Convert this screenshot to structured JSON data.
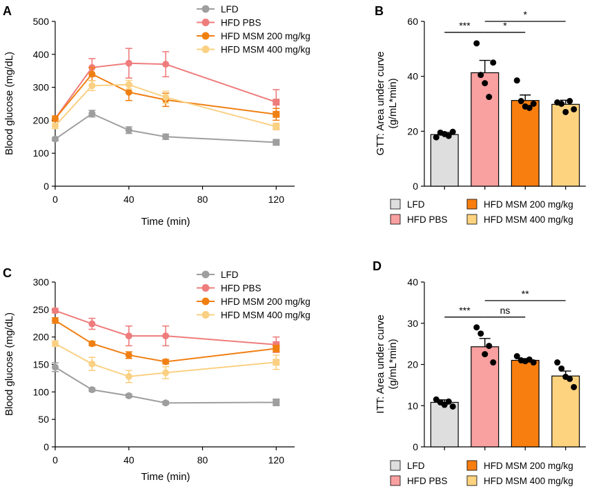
{
  "colors": {
    "LFD": "#9e9e9e",
    "HFD PBS": "#ef7c7c",
    "HFD MSM 200 mg/kg": "#f07f12",
    "HFD MSM 400 mg/kg": "#fad083",
    "LFD_bar": "#dedede",
    "HFD PBS_bar": "#f9a0a0",
    "HFD MSM 200 mg/kg_bar": "#f97e10",
    "HFD MSM 400 mg/kg_bar": "#fdd37f"
  },
  "chart_data": [
    {
      "panel": "A",
      "type": "line",
      "xlabel": "Time (min)",
      "ylabel": "Blood glucose (mg/dL)",
      "xlim": [
        0,
        130
      ],
      "ylim": [
        0,
        500
      ],
      "xticks": [
        0,
        40,
        80,
        120
      ],
      "yticks": [
        0,
        100,
        200,
        300,
        400,
        500
      ],
      "legend_position": "top-right",
      "x": [
        0,
        20,
        40,
        60,
        120
      ],
      "series": [
        {
          "name": "LFD",
          "values": [
            143,
            220,
            170,
            150,
            133
          ],
          "errors": [
            5,
            10,
            10,
            8,
            5
          ]
        },
        {
          "name": "HFD PBS",
          "values": [
            205,
            360,
            373,
            370,
            255
          ],
          "errors": [
            8,
            27,
            45,
            38,
            38
          ]
        },
        {
          "name": "HFD MSM 200 mg/kg",
          "values": [
            205,
            340,
            285,
            262,
            218
          ],
          "errors": [
            8,
            20,
            25,
            20,
            18
          ]
        },
        {
          "name": "HFD MSM 400 mg/kg",
          "values": [
            183,
            305,
            308,
            270,
            181
          ],
          "errors": [
            8,
            15,
            13,
            18,
            10
          ]
        }
      ]
    },
    {
      "panel": "B",
      "type": "bar",
      "ylabel": "GTT: Area under curve (g/mL*min)",
      "ylim": [
        0,
        60
      ],
      "yticks": [
        0,
        20,
        40,
        60
      ],
      "categories": [
        "LFD",
        "HFD PBS",
        "HFD MSM 200 mg/kg",
        "HFD MSM 400 mg/kg"
      ],
      "values": [
        18.8,
        41.3,
        31.2,
        29.8
      ],
      "errors": [
        0.8,
        4.5,
        2.0,
        1.5
      ],
      "points": [
        [
          17.8,
          19.5,
          19.0,
          18.3,
          19.8
        ],
        [
          52.0,
          40.5,
          37.5,
          32.5,
          45.0
        ],
        [
          38.5,
          31.0,
          29.0,
          28.5,
          30.0
        ],
        [
          30.5,
          30.0,
          27.0,
          31.0,
          28.0
        ]
      ],
      "significance": [
        {
          "from": 0,
          "to": 1,
          "label": "***",
          "y": 56
        },
        {
          "from": 1,
          "to": 2,
          "label": "*",
          "y": 56
        },
        {
          "from": 1,
          "to": 3,
          "label": "*",
          "y": 60
        }
      ]
    },
    {
      "panel": "C",
      "type": "line",
      "xlabel": "Time (min)",
      "ylabel": "Blood glucose (mg/dL)",
      "xlim": [
        0,
        130
      ],
      "ylim": [
        0,
        300
      ],
      "xticks": [
        0,
        40,
        80,
        120
      ],
      "yticks": [
        0,
        50,
        100,
        150,
        200,
        250,
        300
      ],
      "legend_position": "top-right",
      "x": [
        0,
        20,
        40,
        60,
        120
      ],
      "series": [
        {
          "name": "LFD",
          "values": [
            145,
            104,
            93,
            80,
            81
          ],
          "errors": [
            8,
            3,
            3,
            3,
            6
          ]
        },
        {
          "name": "HFD PBS",
          "values": [
            248,
            224,
            202,
            202,
            186
          ],
          "errors": [
            4,
            10,
            18,
            18,
            14
          ]
        },
        {
          "name": "HFD MSM 200 mg/kg",
          "values": [
            230,
            188,
            167,
            155,
            179
          ],
          "errors": [
            5,
            4,
            6,
            4,
            6
          ]
        },
        {
          "name": "HFD MSM 400 mg/kg",
          "values": [
            188,
            151,
            128,
            135,
            154
          ],
          "errors": [
            5,
            12,
            11,
            11,
            13
          ]
        }
      ]
    },
    {
      "panel": "D",
      "type": "bar",
      "ylabel": "ITT: Area under curve (g/mL*min)",
      "ylim": [
        0,
        40
      ],
      "yticks": [
        0,
        10,
        20,
        30,
        40
      ],
      "categories": [
        "LFD",
        "HFD PBS",
        "HFD MSM 200 mg/kg",
        "HFD MSM 400 mg/kg"
      ],
      "values": [
        10.8,
        24.3,
        21.0,
        17.2
      ],
      "errors": [
        0.6,
        2.0,
        0.4,
        1.2
      ],
      "points": [
        [
          11.5,
          10.8,
          10.2,
          11.0,
          9.8
        ],
        [
          29.0,
          27.5,
          22.5,
          24.5,
          20.5
        ],
        [
          22.0,
          21.0,
          20.8,
          21.2,
          20.5
        ],
        [
          20.5,
          19.0,
          17.0,
          16.5,
          14.5
        ]
      ],
      "significance": [
        {
          "from": 0,
          "to": 1,
          "label": "***",
          "y": 31.5
        },
        {
          "from": 1,
          "to": 2,
          "label": "ns",
          "y": 31.5
        },
        {
          "from": 1,
          "to": 3,
          "label": "**",
          "y": 35.5
        }
      ]
    }
  ]
}
